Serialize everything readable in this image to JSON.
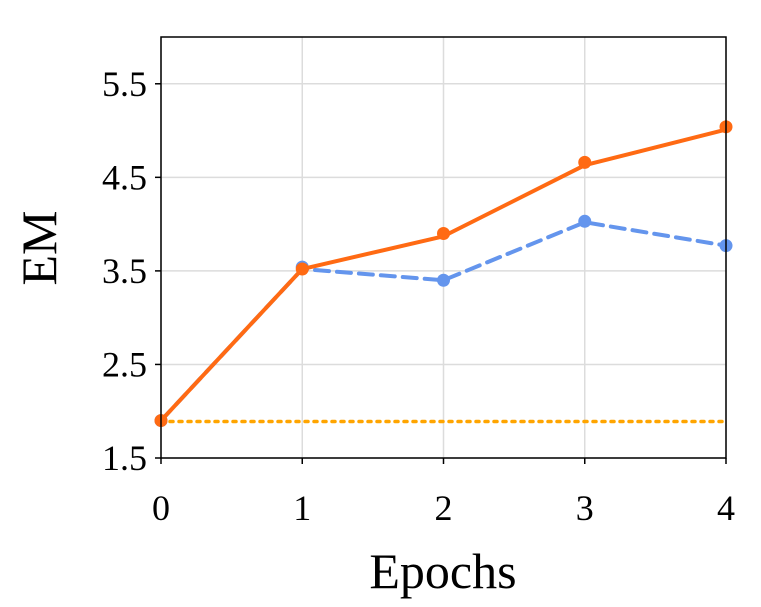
{
  "chart_data": {
    "type": "line",
    "title": "",
    "xlabel": "Epochs",
    "ylabel": "EM",
    "x": [
      0,
      1,
      2,
      3,
      4
    ],
    "xlim": [
      0,
      4
    ],
    "ylim": [
      1.5,
      6.0
    ],
    "xticks": [
      "0",
      "1",
      "2",
      "3",
      "4"
    ],
    "yticks": [
      "1.5",
      "2.5",
      "3.5",
      "4.5",
      "5.5"
    ],
    "grid": true,
    "legend": "none",
    "series": [
      {
        "style": "solid",
        "color": "#ff6a13",
        "values": [
          1.9,
          3.52,
          3.87,
          4.63,
          5.01
        ],
        "marker_values": [
          1.9,
          3.52,
          3.9,
          4.66,
          5.04
        ]
      },
      {
        "style": "dashed",
        "color": "#6495ed",
        "values": [
          1.9,
          3.52,
          3.4,
          4.02,
          3.77
        ],
        "marker_values": [
          1.9,
          3.54,
          3.4,
          4.03,
          3.77
        ]
      },
      {
        "style": "dotted",
        "color": "#ffa500",
        "values": [
          1.89,
          1.89,
          1.89,
          1.89,
          1.89
        ]
      }
    ]
  }
}
